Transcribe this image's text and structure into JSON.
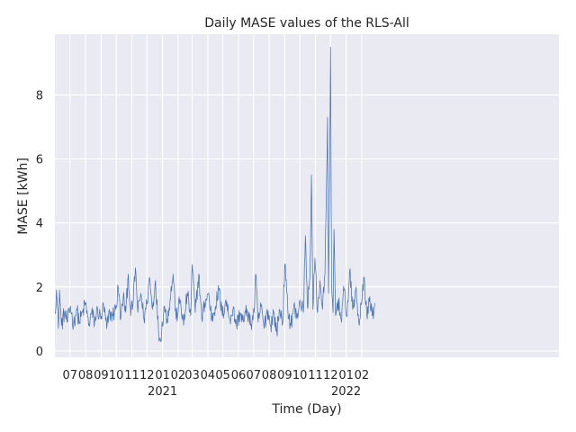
{
  "chart_data": {
    "type": "line",
    "title": "Daily MASE values of the RLS-All",
    "xlabel": "Time (Day)",
    "ylabel": "MASE [kWh]",
    "grid": true,
    "xlim": [
      "2020-06-01",
      "2023-02-28"
    ],
    "ylim": [
      -0.2,
      9.9
    ],
    "y_ticks": [
      0,
      2,
      4,
      6,
      8
    ],
    "x_ticks": [
      {
        "date": "2020-07-01",
        "label": "07",
        "year": ""
      },
      {
        "date": "2020-08-01",
        "label": "08",
        "year": ""
      },
      {
        "date": "2020-09-01",
        "label": "09",
        "year": ""
      },
      {
        "date": "2020-10-01",
        "label": "10",
        "year": ""
      },
      {
        "date": "2020-11-01",
        "label": "11",
        "year": ""
      },
      {
        "date": "2020-12-01",
        "label": "12",
        "year": ""
      },
      {
        "date": "2021-01-01",
        "label": "01",
        "year": "2021"
      },
      {
        "date": "2021-02-01",
        "label": "02",
        "year": ""
      },
      {
        "date": "2021-03-01",
        "label": "03",
        "year": ""
      },
      {
        "date": "2021-04-01",
        "label": "04",
        "year": ""
      },
      {
        "date": "2021-05-01",
        "label": "05",
        "year": ""
      },
      {
        "date": "2021-06-01",
        "label": "06",
        "year": ""
      },
      {
        "date": "2021-07-01",
        "label": "07",
        "year": ""
      },
      {
        "date": "2021-08-01",
        "label": "08",
        "year": ""
      },
      {
        "date": "2021-09-01",
        "label": "09",
        "year": ""
      },
      {
        "date": "2021-10-01",
        "label": "10",
        "year": ""
      },
      {
        "date": "2021-11-01",
        "label": "11",
        "year": ""
      },
      {
        "date": "2021-12-01",
        "label": "12",
        "year": ""
      },
      {
        "date": "2022-01-01",
        "label": "01",
        "year": "2022"
      },
      {
        "date": "2022-02-01",
        "label": "02",
        "year": ""
      }
    ],
    "series": [
      {
        "color": "#4c72b0",
        "points": [
          [
            "2020-06-01",
            1.2
          ],
          [
            "2020-06-04",
            1.9
          ],
          [
            "2020-06-08",
            0.7
          ],
          [
            "2020-06-10",
            1.9
          ],
          [
            "2020-06-14",
            0.8
          ],
          [
            "2020-06-20",
            1.2
          ],
          [
            "2020-06-26",
            0.9
          ],
          [
            "2020-07-02",
            1.4
          ],
          [
            "2020-07-08",
            0.8
          ],
          [
            "2020-07-14",
            1.3
          ],
          [
            "2020-07-20",
            0.9
          ],
          [
            "2020-07-26",
            1.2
          ],
          [
            "2020-08-01",
            1.5
          ],
          [
            "2020-08-07",
            0.8
          ],
          [
            "2020-08-13",
            1.2
          ],
          [
            "2020-08-19",
            0.9
          ],
          [
            "2020-08-25",
            1.3
          ],
          [
            "2020-08-31",
            1.0
          ],
          [
            "2020-09-06",
            1.4
          ],
          [
            "2020-09-12",
            0.7
          ],
          [
            "2020-09-18",
            1.2
          ],
          [
            "2020-09-24",
            1.1
          ],
          [
            "2020-10-01",
            1.4
          ],
          [
            "2020-10-05",
            2.0
          ],
          [
            "2020-10-10",
            1.0
          ],
          [
            "2020-10-15",
            1.7
          ],
          [
            "2020-10-20",
            1.2
          ],
          [
            "2020-10-25",
            2.4
          ],
          [
            "2020-10-30",
            1.1
          ],
          [
            "2020-11-04",
            1.6
          ],
          [
            "2020-11-08",
            2.6
          ],
          [
            "2020-11-13",
            1.2
          ],
          [
            "2020-11-19",
            1.8
          ],
          [
            "2020-11-25",
            1.0
          ],
          [
            "2020-12-01",
            1.5
          ],
          [
            "2020-12-06",
            2.3
          ],
          [
            "2020-12-12",
            1.3
          ],
          [
            "2020-12-18",
            2.2
          ],
          [
            "2020-12-24",
            0.6
          ],
          [
            "2020-12-28",
            0.3
          ],
          [
            "2021-01-04",
            1.4
          ],
          [
            "2021-01-10",
            1.0
          ],
          [
            "2021-01-16",
            1.6
          ],
          [
            "2021-01-22",
            2.4
          ],
          [
            "2021-01-28",
            1.0
          ],
          [
            "2021-02-05",
            1.6
          ],
          [
            "2021-02-12",
            0.8
          ],
          [
            "2021-02-19",
            1.8
          ],
          [
            "2021-02-26",
            1.1
          ],
          [
            "2021-03-01",
            2.7
          ],
          [
            "2021-03-07",
            1.2
          ],
          [
            "2021-03-14",
            2.4
          ],
          [
            "2021-03-20",
            1.0
          ],
          [
            "2021-03-26",
            1.5
          ],
          [
            "2021-04-02",
            1.8
          ],
          [
            "2021-04-09",
            1.0
          ],
          [
            "2021-04-16",
            1.4
          ],
          [
            "2021-04-23",
            1.9
          ],
          [
            "2021-04-30",
            1.1
          ],
          [
            "2021-05-07",
            1.6
          ],
          [
            "2021-05-14",
            1.0
          ],
          [
            "2021-05-21",
            1.3
          ],
          [
            "2021-05-28",
            0.8
          ],
          [
            "2021-06-04",
            1.2
          ],
          [
            "2021-06-11",
            0.9
          ],
          [
            "2021-06-18",
            1.3
          ],
          [
            "2021-06-25",
            0.8
          ],
          [
            "2021-07-02",
            1.2
          ],
          [
            "2021-07-05",
            2.4
          ],
          [
            "2021-07-10",
            0.9
          ],
          [
            "2021-07-16",
            1.4
          ],
          [
            "2021-07-22",
            0.7
          ],
          [
            "2021-07-28",
            1.3
          ],
          [
            "2021-08-04",
            0.8
          ],
          [
            "2021-08-10",
            1.2
          ],
          [
            "2021-08-16",
            0.6
          ],
          [
            "2021-08-22",
            1.3
          ],
          [
            "2021-08-28",
            0.9
          ],
          [
            "2021-09-01",
            2.7
          ],
          [
            "2021-09-07",
            1.3
          ],
          [
            "2021-09-13",
            0.8
          ],
          [
            "2021-09-19",
            1.4
          ],
          [
            "2021-09-25",
            1.0
          ],
          [
            "2021-10-01",
            1.6
          ],
          [
            "2021-10-08",
            1.2
          ],
          [
            "2021-10-12",
            3.6
          ],
          [
            "2021-10-16",
            1.4
          ],
          [
            "2021-10-21",
            2.3
          ],
          [
            "2021-10-24",
            5.5
          ],
          [
            "2021-10-27",
            1.3
          ],
          [
            "2021-10-31",
            2.9
          ],
          [
            "2021-11-05",
            1.2
          ],
          [
            "2021-11-10",
            2.2
          ],
          [
            "2021-11-15",
            1.3
          ],
          [
            "2021-11-20",
            2.4
          ],
          [
            "2021-11-25",
            7.3
          ],
          [
            "2021-11-27",
            1.8
          ],
          [
            "2021-11-29",
            4.5
          ],
          [
            "2021-12-01",
            9.5
          ],
          [
            "2021-12-03",
            2.0
          ],
          [
            "2021-12-06",
            1.2
          ],
          [
            "2021-12-08",
            3.8
          ],
          [
            "2021-12-11",
            1.1
          ],
          [
            "2021-12-16",
            1.6
          ],
          [
            "2021-12-22",
            1.0
          ],
          [
            "2021-12-28",
            1.9
          ],
          [
            "2022-01-03",
            1.1
          ],
          [
            "2022-01-08",
            2.5
          ],
          [
            "2022-01-14",
            1.3
          ],
          [
            "2022-01-20",
            1.9
          ],
          [
            "2022-01-26",
            0.9
          ],
          [
            "2022-02-01",
            1.5
          ],
          [
            "2022-02-06",
            2.3
          ],
          [
            "2022-02-12",
            1.0
          ],
          [
            "2022-02-17",
            1.7
          ],
          [
            "2022-02-22",
            1.1
          ],
          [
            "2022-02-27",
            1.5
          ]
        ]
      }
    ]
  }
}
